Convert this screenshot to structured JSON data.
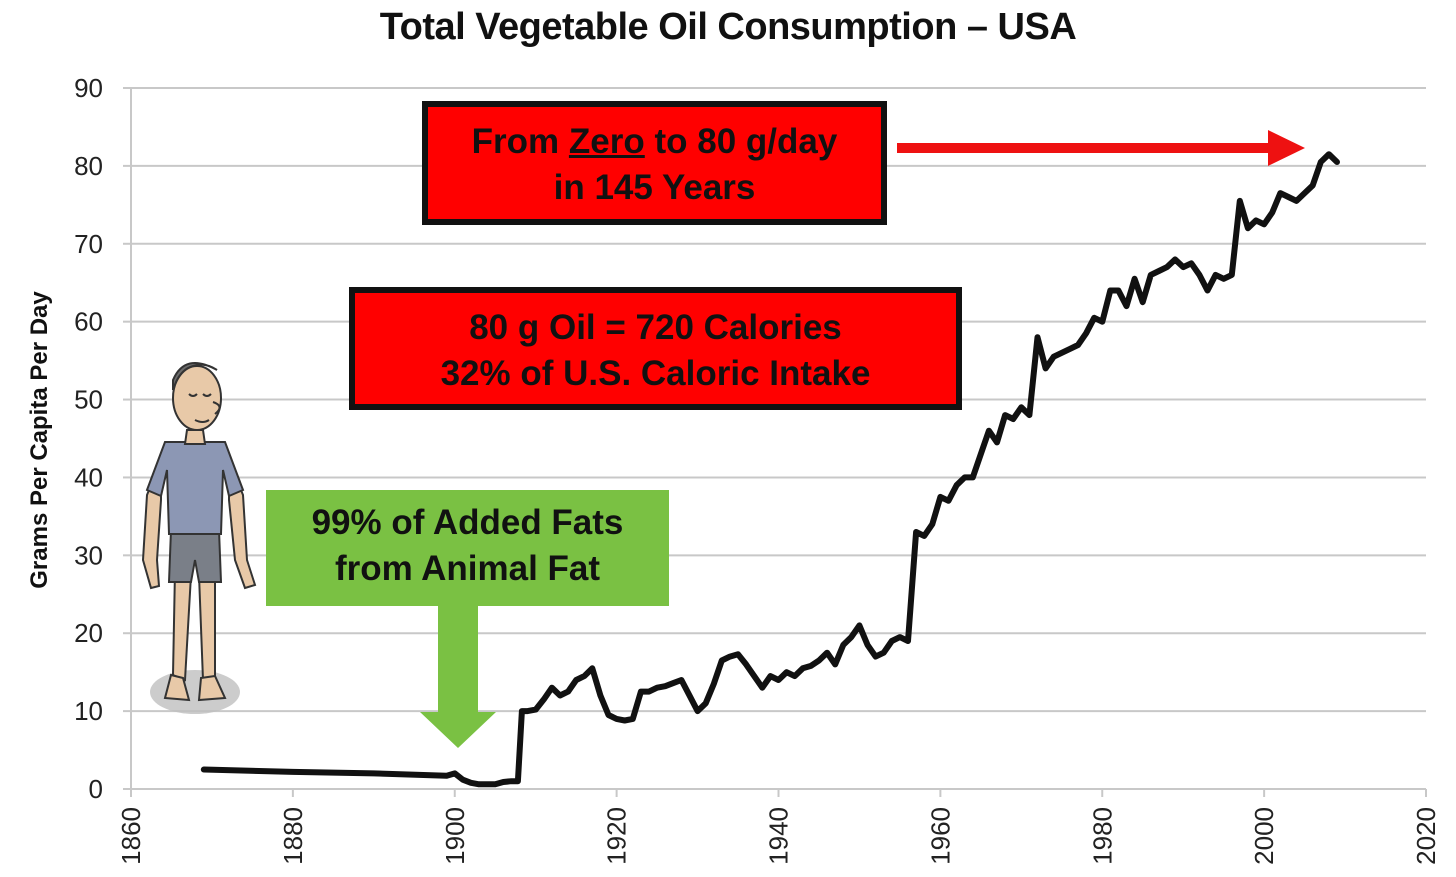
{
  "colors": {
    "line": "#111111",
    "grid": "#c8c8c8",
    "red_box": "#ff0000",
    "green_box": "#7ac143",
    "arrow_red": "#ee1111",
    "arrow_green": "#7ac143"
  },
  "icons": [
    "person-illustration"
  ],
  "callouts": {
    "zero": {
      "prefix": "From ",
      "emph": "Zero",
      "suffix": " to 80 g/day",
      "line2": "in 145 Years"
    },
    "calories": {
      "line1": "80 g Oil = 720 Calories",
      "line2": "32% of U.S. Caloric Intake"
    },
    "animal": {
      "line1": "99% of Added Fats",
      "line2": "from Animal Fat"
    }
  },
  "chart_data": {
    "type": "line",
    "title": "Total Vegetable Oil Consumption – USA",
    "xlabel": "",
    "ylabel": "Grams Per Capita Per Day",
    "xlim": [
      1860,
      2020
    ],
    "ylim": [
      0,
      90
    ],
    "xticks": [
      1860,
      1880,
      1900,
      1920,
      1940,
      1960,
      1980,
      2000,
      2020
    ],
    "yticks": [
      0,
      10,
      20,
      30,
      40,
      50,
      60,
      70,
      80,
      90
    ],
    "grid": "horizontal",
    "x": [
      1869,
      1880,
      1890,
      1899,
      1900,
      1901,
      1902,
      1903,
      1905,
      1906,
      1907,
      1907.8,
      1908.3,
      1909,
      1910,
      1911,
      1912,
      1913,
      1914,
      1915,
      1916,
      1917,
      1918,
      1919,
      1920,
      1921,
      1922,
      1923,
      1924,
      1925,
      1926,
      1927,
      1928,
      1929,
      1930,
      1931,
      1932,
      1933,
      1934,
      1935,
      1936,
      1937,
      1938,
      1939,
      1940,
      1941,
      1942,
      1943,
      1944,
      1945,
      1946,
      1947,
      1948,
      1949,
      1950,
      1951,
      1952,
      1953,
      1954,
      1955,
      1956,
      1957,
      1958,
      1959,
      1960,
      1961,
      1962,
      1963,
      1964,
      1965,
      1966,
      1967,
      1968,
      1969,
      1970,
      1971,
      1972,
      1973,
      1974,
      1975,
      1976,
      1977,
      1978,
      1979,
      1980,
      1981,
      1982,
      1983,
      1984,
      1985,
      1986,
      1987,
      1988,
      1989,
      1990,
      1991,
      1992,
      1993,
      1994,
      1995,
      1996,
      1997,
      1998,
      1999,
      2000,
      2001,
      2002,
      2003,
      2004,
      2005,
      2006,
      2007,
      2008,
      2009
    ],
    "series": [
      {
        "values": [
          2.5,
          2.2,
          2.0,
          1.7,
          2.0,
          1.2,
          0.8,
          0.6,
          0.6,
          0.9,
          1.0,
          1.0,
          10.0,
          10.0,
          10.2,
          11.5,
          13.0,
          12.0,
          12.5,
          14.0,
          14.5,
          15.5,
          12.0,
          9.5,
          9.0,
          8.8,
          9.0,
          12.5,
          12.5,
          13.0,
          13.2,
          13.6,
          14.0,
          12.0,
          10.0,
          11.0,
          13.5,
          16.5,
          17.0,
          17.3,
          16.0,
          14.5,
          13.0,
          14.5,
          14.0,
          15.0,
          14.5,
          15.5,
          15.8,
          16.5,
          17.5,
          16.0,
          18.5,
          19.5,
          21.0,
          18.5,
          17.0,
          17.5,
          19.0,
          19.5,
          19.0,
          33.0,
          32.5,
          34.0,
          37.5,
          37.0,
          39.0,
          40.0,
          40.0,
          43.0,
          46.0,
          44.5,
          48.0,
          47.5,
          49.0,
          48.0,
          58.0,
          54.0,
          55.5,
          56.0,
          56.5,
          57.0,
          58.5,
          60.5,
          60.0,
          64.0,
          64.0,
          62.0,
          65.5,
          62.5,
          66.0,
          66.5,
          67.0,
          68.0,
          67.0,
          67.5,
          66.0,
          64.0,
          66.0,
          65.5,
          66.0,
          75.5,
          72.0,
          73.0,
          72.5,
          74.0,
          76.5,
          76.0,
          75.5,
          76.5,
          77.5,
          80.5,
          81.5,
          80.5
        ]
      }
    ],
    "annotations": [
      "From Zero to 80 g/day in 145 Years",
      "80 g Oil = 720 Calories 32% of U.S. Caloric Intake",
      "99% of Added Fats from Animal Fat"
    ]
  }
}
